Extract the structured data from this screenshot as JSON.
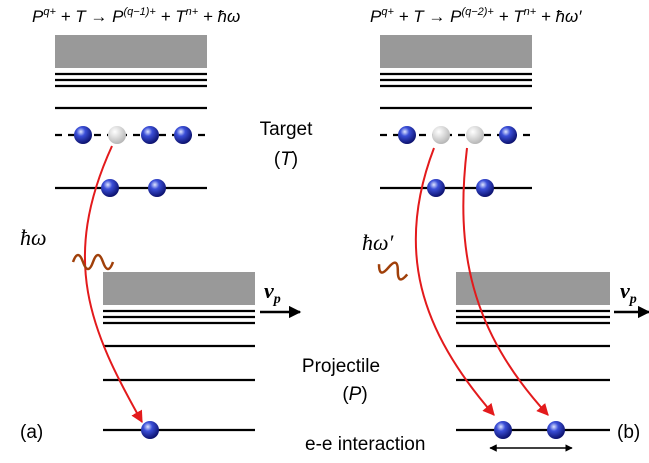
{
  "panel_a": {
    "equation": [
      "P",
      "q+",
      " + T → P",
      "(q−1)+",
      " + T",
      "n+",
      " + ħω"
    ],
    "photon": "ħω",
    "label": "(a)"
  },
  "panel_b": {
    "equation": [
      "P",
      "q+",
      " + T → P",
      "(q−2)+",
      " + T",
      "n+",
      " + ħω′"
    ],
    "photon": "ħω′",
    "label": "(b)"
  },
  "target": {
    "name": "Target",
    "symbol_open": "(",
    "symbol": "T",
    "symbol_close": ")"
  },
  "projectile": {
    "name": "Projectile",
    "symbol_open": "(",
    "symbol": "P",
    "symbol_close": ")"
  },
  "velocity": {
    "symbol": "v",
    "subscript": "p"
  },
  "interaction": "e-e interaction"
}
